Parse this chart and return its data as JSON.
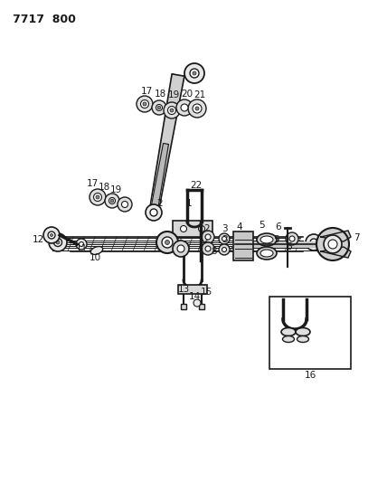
{
  "title": "7717  800",
  "bg_color": "#ffffff",
  "line_color": "#1a1a1a",
  "title_fontsize": 10,
  "label_fontsize": 7,
  "fig_width": 4.28,
  "fig_height": 5.33,
  "dpi": 100
}
